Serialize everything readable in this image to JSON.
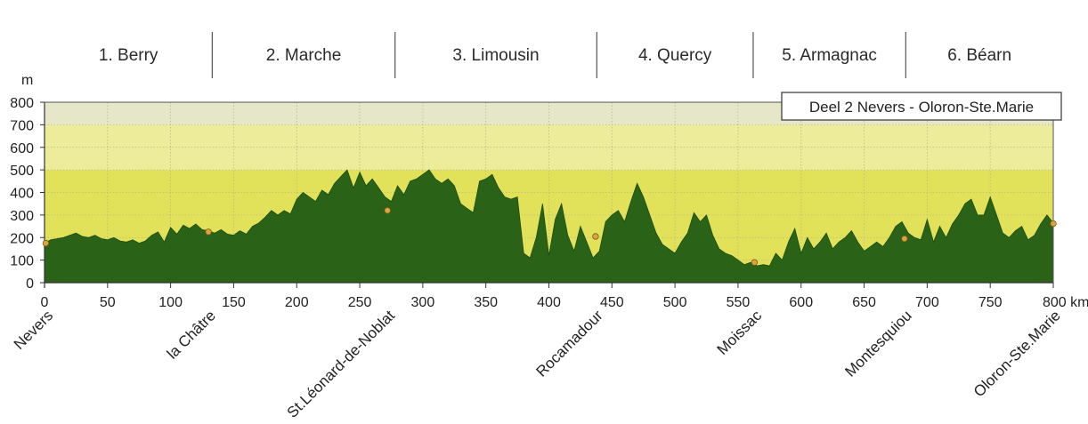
{
  "chart_data": {
    "type": "area",
    "title": "Deel 2 Nevers - Oloron-Ste.Marie",
    "ylabel": "m",
    "xlabel": "",
    "x_unit": "km",
    "xlim": [
      0,
      800
    ],
    "ylim": [
      0,
      800
    ],
    "x_ticks": [
      0,
      50,
      100,
      150,
      200,
      250,
      300,
      350,
      400,
      450,
      500,
      550,
      600,
      650,
      700,
      750,
      800
    ],
    "x_tick_labels": [
      "0",
      "50",
      "100",
      "150",
      "200",
      "250",
      "300",
      "350",
      "400",
      "450",
      "500",
      "550",
      "600",
      "650",
      "700",
      "750",
      "800 km"
    ],
    "y_ticks": [
      0,
      100,
      200,
      300,
      400,
      500,
      600,
      700,
      800
    ],
    "y_tick_labels": [
      "0",
      "100",
      "200",
      "300",
      "400",
      "500",
      "600",
      "700",
      "800"
    ],
    "grid": true,
    "background_bands": [
      {
        "from": 0,
        "to": 500,
        "color": "#e2e25a"
      },
      {
        "from": 500,
        "to": 700,
        "color": "#ecec9a"
      },
      {
        "from": 700,
        "to": 800,
        "color": "#e6e6c8"
      }
    ],
    "fill_color": "#2a6318",
    "regions": [
      {
        "label": "1. Berry",
        "from": 0,
        "to": 133
      },
      {
        "label": "2. Marche",
        "from": 133,
        "to": 278
      },
      {
        "label": "3. Limousin",
        "from": 278,
        "to": 438
      },
      {
        "label": "4. Quercy",
        "from": 438,
        "to": 562
      },
      {
        "label": "5. Armagnac",
        "from": 562,
        "to": 683
      },
      {
        "label": "6. Béarn",
        "from": 683,
        "to": 800
      }
    ],
    "places": [
      {
        "name": "Nevers",
        "x": 1,
        "y": 175
      },
      {
        "name": "la Châtre",
        "x": 130,
        "y": 225
      },
      {
        "name": "St.Léonard-de-Noblat",
        "x": 272,
        "y": 320
      },
      {
        "name": "Rocamadour",
        "x": 437,
        "y": 205
      },
      {
        "name": "Moissac",
        "x": 563,
        "y": 90
      },
      {
        "name": "Montesquiou",
        "x": 682,
        "y": 195
      },
      {
        "name": "Oloron-Ste.Marie",
        "x": 800,
        "y": 262
      }
    ],
    "series": [
      {
        "x": [
          0,
          5,
          10,
          15,
          20,
          25,
          30,
          35,
          40,
          45,
          50,
          55,
          60,
          65,
          70,
          75,
          80,
          85,
          90,
          95,
          100,
          105,
          110,
          115,
          120,
          125,
          130,
          135,
          140,
          145,
          150,
          155,
          160,
          165,
          170,
          175,
          180,
          185,
          190,
          195,
          200,
          205,
          210,
          215,
          220,
          225,
          230,
          235,
          240,
          245,
          250,
          255,
          260,
          265,
          270,
          275,
          280,
          285,
          290,
          295,
          300,
          305,
          310,
          315,
          320,
          325,
          330,
          335,
          340,
          345,
          350,
          355,
          360,
          365,
          370,
          375,
          380,
          385,
          390,
          395,
          400,
          405,
          410,
          415,
          420,
          425,
          430,
          435,
          440,
          445,
          450,
          455,
          460,
          465,
          470,
          475,
          480,
          485,
          490,
          495,
          500,
          505,
          510,
          515,
          520,
          525,
          530,
          535,
          540,
          545,
          550,
          555,
          560,
          565,
          570,
          575,
          580,
          585,
          590,
          595,
          600,
          605,
          610,
          615,
          620,
          625,
          630,
          635,
          640,
          645,
          650,
          655,
          660,
          665,
          670,
          675,
          680,
          685,
          690,
          695,
          700,
          705,
          710,
          715,
          720,
          725,
          730,
          735,
          740,
          745,
          750,
          755,
          760,
          765,
          770,
          775,
          780,
          785,
          790,
          795,
          800
        ],
        "values": [
          175,
          190,
          195,
          200,
          210,
          220,
          205,
          200,
          210,
          195,
          190,
          200,
          185,
          180,
          190,
          175,
          185,
          210,
          225,
          180,
          245,
          215,
          255,
          240,
          260,
          235,
          230,
          220,
          235,
          215,
          210,
          230,
          215,
          250,
          265,
          290,
          320,
          300,
          320,
          305,
          370,
          400,
          380,
          360,
          410,
          390,
          440,
          470,
          500,
          420,
          490,
          430,
          460,
          420,
          380,
          360,
          430,
          390,
          450,
          460,
          480,
          500,
          460,
          440,
          460,
          430,
          350,
          330,
          310,
          450,
          460,
          480,
          420,
          380,
          370,
          380,
          130,
          110,
          200,
          350,
          120,
          280,
          350,
          210,
          140,
          250,
          180,
          110,
          140,
          270,
          300,
          320,
          270,
          360,
          440,
          380,
          300,
          220,
          170,
          150,
          130,
          180,
          220,
          310,
          270,
          300,
          210,
          150,
          130,
          120,
          100,
          80,
          90,
          75,
          80,
          75,
          130,
          100,
          180,
          240,
          130,
          200,
          150,
          180,
          220,
          150,
          180,
          200,
          230,
          180,
          140,
          160,
          180,
          160,
          200,
          250,
          270,
          220,
          200,
          190,
          280,
          180,
          250,
          200,
          260,
          300,
          350,
          370,
          300,
          300,
          380,
          300,
          220,
          200,
          230,
          250,
          190,
          210,
          260,
          300,
          265
        ]
      }
    ]
  }
}
